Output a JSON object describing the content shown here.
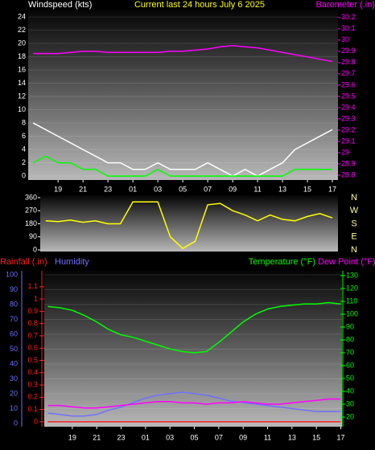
{
  "chart_data": [
    {
      "type": "line",
      "title": "Current last 24 hours July 6 2025",
      "y_label": "Windspeed (kts)",
      "y2_label": "Barometer (.in)",
      "x": [
        17,
        18,
        19,
        20,
        21,
        22,
        23,
        24,
        25,
        26,
        27,
        28,
        29,
        30,
        31,
        32,
        33,
        34,
        35,
        36,
        37,
        38,
        39,
        40,
        41
      ],
      "xlim": [
        16.6,
        41.45
      ],
      "xticks": [
        {
          "value": 19,
          "label": "19"
        },
        {
          "value": 21,
          "label": "21"
        },
        {
          "value": 23,
          "label": "23"
        },
        {
          "value": 25,
          "label": "01"
        },
        {
          "value": 27,
          "label": "03"
        },
        {
          "value": 29,
          "label": "05"
        },
        {
          "value": 31,
          "label": "07"
        },
        {
          "value": 33,
          "label": "09"
        },
        {
          "value": 35,
          "label": "11"
        },
        {
          "value": 37,
          "label": "13"
        },
        {
          "value": 39,
          "label": "15"
        },
        {
          "value": 41,
          "label": "17"
        }
      ],
      "ylim": [
        -0.6,
        25.1
      ],
      "yticks": [
        0,
        2,
        4,
        6,
        8,
        10,
        12,
        14,
        16,
        18,
        20,
        22,
        24
      ],
      "y_color": "#ffffff",
      "y2lim": [
        28.757,
        30.27
      ],
      "y2ticks": [
        28.8,
        28.9,
        29,
        29.1,
        29.2,
        29.3,
        29.4,
        29.5,
        29.6,
        29.7,
        29.8,
        29.9,
        30,
        30.1,
        30.2
      ],
      "y2_color": "#ff00ff",
      "grid": true,
      "series": [
        {
          "color": "#ffffff",
          "values": [
            8,
            7,
            6,
            5,
            4,
            3,
            2,
            2,
            1,
            1,
            2,
            1,
            1,
            1,
            2,
            1,
            0,
            1,
            0,
            1,
            2,
            4,
            5,
            6,
            7
          ]
        },
        {
          "color": "#00ff00",
          "values": [
            2,
            3,
            2,
            2,
            1,
            1,
            0,
            0,
            0,
            0,
            1,
            0,
            0,
            0,
            0,
            0,
            0,
            0,
            0,
            0,
            0,
            1,
            1,
            1,
            1
          ]
        },
        {
          "color": "#ff00ff",
          "axis": "y2",
          "values": [
            29.88,
            29.88,
            29.88,
            29.89,
            29.9,
            29.9,
            29.89,
            29.89,
            29.89,
            29.89,
            29.89,
            29.9,
            29.9,
            29.91,
            29.92,
            29.94,
            29.95,
            29.94,
            29.93,
            29.91,
            29.89,
            29.87,
            29.85,
            29.83,
            29.81
          ]
        }
      ]
    },
    {
      "type": "line",
      "x": [
        18,
        19,
        20,
        21,
        22,
        23,
        24,
        25,
        26,
        27,
        28,
        29,
        30,
        31,
        32,
        33,
        34,
        35,
        36,
        37,
        38,
        39,
        40,
        41
      ],
      "xlim": [
        17.57,
        41.45
      ],
      "ylim": [
        -11,
        376
      ],
      "yticks": [
        0,
        90,
        180,
        270,
        360
      ],
      "y_color": "#ffffff",
      "compass_labels": [
        "N",
        "E",
        "S",
        "W",
        "N"
      ],
      "series": [
        {
          "color": "#ffff00",
          "values": [
            200,
            195,
            205,
            190,
            200,
            180,
            180,
            330,
            330,
            330,
            90,
            10,
            60,
            310,
            320,
            270,
            240,
            200,
            240,
            210,
            200,
            230,
            250,
            220
          ]
        }
      ]
    },
    {
      "type": "line",
      "y_label": "Humidity",
      "y2_label": "Temperature (°F)",
      "y3_label": "Rainfall (.in)",
      "x": [
        17,
        18,
        19,
        20,
        21,
        22,
        23,
        24,
        25,
        26,
        27,
        28,
        29,
        30,
        31,
        32,
        33,
        34,
        35,
        36,
        37,
        38,
        39,
        40,
        41
      ],
      "xlim": [
        16.7,
        41.1
      ],
      "xticks": [
        {
          "value": 19,
          "label": "19"
        },
        {
          "value": 21,
          "label": "21"
        },
        {
          "value": 23,
          "label": "23"
        },
        {
          "value": 25,
          "label": "01"
        },
        {
          "value": 27,
          "label": "03"
        },
        {
          "value": 29,
          "label": "05"
        },
        {
          "value": 31,
          "label": "07"
        },
        {
          "value": 33,
          "label": "09"
        },
        {
          "value": 35,
          "label": "11"
        },
        {
          "value": 37,
          "label": "13"
        },
        {
          "value": 39,
          "label": "15"
        },
        {
          "value": 41,
          "label": "17"
        }
      ],
      "ylim": [
        -2.2,
        102.7
      ],
      "yticks": [
        0,
        10,
        20,
        30,
        40,
        50,
        60,
        70,
        80,
        90,
        100
      ],
      "y_color": "#6f6fff",
      "y2lim": [
        12.5,
        133.75
      ],
      "y2ticks": [
        20,
        30,
        40,
        50,
        60,
        70,
        80,
        90,
        100,
        110,
        120,
        130
      ],
      "y2_color": "#00ff00",
      "y3lim": [
        -0.04,
        1.23
      ],
      "y3ticks": [
        0,
        0.1,
        0.2,
        0.3,
        0.4,
        0.5,
        0.6,
        0.7,
        0.8,
        0.9,
        1,
        1.1
      ],
      "y3_color": "#ff2020",
      "grid": true,
      "series": [
        {
          "color": "#6f6fff",
          "values": [
            7,
            6,
            5,
            5,
            6,
            9,
            11,
            14,
            17,
            19,
            20,
            21,
            20,
            19,
            17,
            15,
            14,
            13,
            12,
            11,
            10,
            9,
            8,
            8,
            8
          ]
        },
        {
          "color": "#00ff00",
          "axis": "y2",
          "values": [
            106,
            105,
            103,
            99,
            94,
            88,
            84,
            82,
            79,
            76,
            73,
            71,
            70,
            71,
            78,
            86,
            94,
            100,
            104,
            106,
            107,
            108,
            108,
            109,
            108
          ]
        },
        {
          "name": "Dew Point (°F)",
          "color": "#ff00ff",
          "axis": "y2",
          "values": [
            29,
            29,
            28,
            27,
            27,
            28,
            29,
            30,
            31,
            32,
            32,
            31,
            31,
            30,
            31,
            31,
            32,
            31,
            30,
            30,
            31,
            32,
            33,
            34,
            34
          ]
        },
        {
          "color": "#ff2020",
          "axis": "y3",
          "values": [
            0,
            0,
            0,
            0,
            0,
            0,
            0,
            0,
            0,
            0,
            0,
            0,
            0,
            0,
            0,
            0,
            0,
            0,
            0,
            0,
            0,
            0,
            0,
            0,
            0
          ]
        }
      ]
    }
  ]
}
